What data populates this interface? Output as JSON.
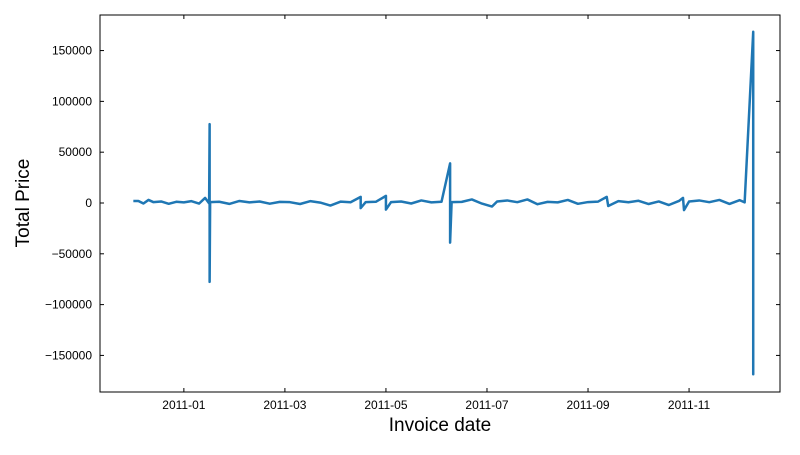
{
  "chart_data": {
    "type": "line",
    "xlabel": "Invoice date",
    "ylabel": "Total Price",
    "xlim": [
      -0.66,
      12.8
    ],
    "xticks": [
      {
        "value": 1,
        "label": "2011-01"
      },
      {
        "value": 3,
        "label": "2011-03"
      },
      {
        "value": 5,
        "label": "2011-05"
      },
      {
        "value": 7,
        "label": "2011-07"
      },
      {
        "value": 9,
        "label": "2011-09"
      },
      {
        "value": 11,
        "label": "2011-11"
      }
    ],
    "ylim": [
      -186000,
      185000
    ],
    "yticks": [
      {
        "value": -150000,
        "label": "−150000"
      },
      {
        "value": -100000,
        "label": "−100000"
      },
      {
        "value": -50000,
        "label": "−50000"
      },
      0,
      50000,
      100000,
      150000
    ],
    "grid": false,
    "series": [
      {
        "color": "#1f77b4",
        "x": [
          0,
          0.1,
          0.2,
          0.3,
          0.4,
          0.55,
          0.7,
          0.85,
          1.0,
          1.15,
          1.3,
          1.42,
          1.5,
          1.51,
          1.51,
          1.52,
          1.7,
          1.9,
          2.1,
          2.3,
          2.5,
          2.7,
          2.9,
          3.1,
          3.3,
          3.5,
          3.7,
          3.9,
          4.1,
          4.3,
          4.5,
          4.5,
          4.6,
          4.8,
          5.0,
          5.0,
          5.1,
          5.3,
          5.5,
          5.7,
          5.9,
          6.1,
          6.27,
          6.27,
          6.3,
          6.5,
          6.7,
          6.9,
          7.1,
          7.2,
          7.4,
          7.6,
          7.8,
          8.0,
          8.2,
          8.4,
          8.6,
          8.8,
          9.0,
          9.2,
          9.37,
          9.4,
          9.6,
          9.8,
          10.0,
          10.2,
          10.4,
          10.6,
          10.8,
          10.88,
          10.9,
          11.0,
          11.2,
          11.4,
          11.6,
          11.8,
          12.0,
          12.1,
          12.27,
          12.27,
          12.27
        ],
        "values": [
          2000,
          2000,
          -500,
          3000,
          800,
          1500,
          -800,
          1200,
          600,
          1800,
          -600,
          5000,
          -400,
          77600,
          -77600,
          800,
          1200,
          -900,
          2000,
          600,
          1500,
          -700,
          1100,
          800,
          -1000,
          1800,
          400,
          -2500,
          1300,
          700,
          6000,
          -5000,
          900,
          1200,
          7000,
          -6500,
          800,
          1500,
          -500,
          2500,
          600,
          1200,
          39000,
          -39000,
          900,
          1100,
          3500,
          -600,
          -3500,
          1500,
          2500,
          800,
          3500,
          -1200,
          1100,
          600,
          3000,
          -800,
          900,
          1400,
          6000,
          -3000,
          1800,
          700,
          2200,
          -1000,
          1500,
          -2000,
          2000,
          5000,
          -7000,
          1500,
          2500,
          800,
          3000,
          -900,
          2800,
          600,
          168500,
          -168500,
          1000
        ]
      }
    ]
  }
}
